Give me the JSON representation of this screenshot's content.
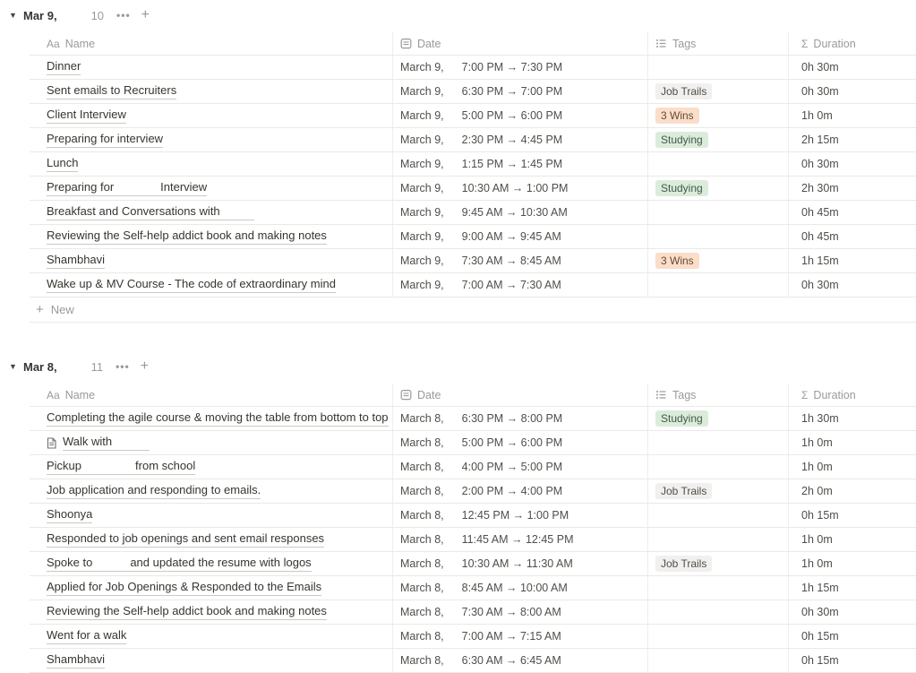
{
  "icons": {
    "toggle_glyph": "▼",
    "menu_glyph": "•••",
    "add_glyph": "+",
    "aa_glyph": "Aa",
    "sigma_glyph": "Σ",
    "plus_glyph": "+"
  },
  "columns": [
    {
      "key": "name",
      "label": "Name",
      "icon": "aa-icon"
    },
    {
      "key": "date",
      "label": "Date",
      "icon": "calendar-icon"
    },
    {
      "key": "tags",
      "label": "Tags",
      "icon": "list-icon"
    },
    {
      "key": "duration",
      "label": "Duration",
      "icon": "sigma-icon"
    }
  ],
  "tag_colors": {
    "Job Trails": {
      "bg": "#f1f0ee",
      "text": "#504e47"
    },
    "3 Wins": {
      "bg": "#fadec9",
      "text": "#664b33"
    },
    "Studying": {
      "bg": "#dcecdb",
      "text": "#3f5a4b"
    }
  },
  "groups": [
    {
      "title": "Mar 9,",
      "count": "10",
      "new_label": "New",
      "show_new_row": true,
      "rows": [
        {
          "name_pre": "Dinner",
          "name_gap": 0,
          "name_post": "",
          "page_icon": false,
          "date": "March 9,",
          "time": "7:00 PM → 7:30 PM",
          "tag": "",
          "duration": "0h 30m"
        },
        {
          "name_pre": "Sent emails to Recruiters",
          "name_gap": 0,
          "name_post": "",
          "page_icon": false,
          "date": "March 9,",
          "time": "6:30 PM → 7:00 PM",
          "tag": "Job Trails",
          "duration": "0h 30m"
        },
        {
          "name_pre": "Client Interview",
          "name_gap": 0,
          "name_post": "",
          "page_icon": false,
          "date": "March 9,",
          "time": "5:00 PM → 6:00 PM",
          "tag": "3 Wins",
          "duration": "1h 0m"
        },
        {
          "name_pre": "Preparing for interview",
          "name_gap": 0,
          "name_post": "",
          "page_icon": false,
          "date": "March 9,",
          "time": "2:30 PM → 4:45 PM",
          "tag": "Studying",
          "duration": "2h 15m"
        },
        {
          "name_pre": "Lunch",
          "name_gap": 0,
          "name_post": "",
          "page_icon": false,
          "date": "March 9,",
          "time": "1:15 PM → 1:45 PM",
          "tag": "",
          "duration": "0h 30m"
        },
        {
          "name_pre": "Preparing for",
          "name_gap": 52,
          "name_post": "Interview",
          "page_icon": false,
          "date": "March 9,",
          "time": "10:30 AM → 1:00 PM",
          "tag": "Studying",
          "duration": "2h 30m"
        },
        {
          "name_pre": "Breakfast and Conversations with",
          "name_gap": 38,
          "name_post": "",
          "page_icon": false,
          "date": "March 9,",
          "time": "9:45 AM → 10:30 AM",
          "tag": "",
          "duration": "0h 45m"
        },
        {
          "name_pre": "Reviewing the Self-help addict book and making notes",
          "name_gap": 0,
          "name_post": "",
          "page_icon": false,
          "date": "March 9,",
          "time": "9:00 AM → 9:45 AM",
          "tag": "",
          "duration": "0h 45m"
        },
        {
          "name_pre": "Shambhavi",
          "name_gap": 0,
          "name_post": "",
          "page_icon": false,
          "date": "March 9,",
          "time": "7:30 AM → 8:45 AM",
          "tag": "3 Wins",
          "duration": "1h 15m"
        },
        {
          "name_pre": "Wake up & MV Course - The code of extraordinary mind",
          "name_gap": 0,
          "name_post": "",
          "page_icon": false,
          "date": "March 9,",
          "time": "7:00 AM → 7:30 AM",
          "tag": "",
          "duration": "0h 30m"
        }
      ]
    },
    {
      "title": "Mar 8,",
      "count": "11",
      "new_label": "New",
      "show_new_row": false,
      "rows": [
        {
          "name_pre": "Completing the agile course & moving the table from bottom to top",
          "name_gap": 0,
          "name_post": "",
          "page_icon": false,
          "date": "March 8,",
          "time": "6:30 PM → 8:00 PM",
          "tag": "Studying",
          "duration": "1h 30m"
        },
        {
          "name_pre": "Walk with",
          "name_gap": 42,
          "name_post": "",
          "page_icon": true,
          "date": "March 8,",
          "time": "5:00 PM → 6:00 PM",
          "tag": "",
          "duration": "1h 0m"
        },
        {
          "name_pre": "Pickup",
          "name_gap": 60,
          "name_post": "from school",
          "page_icon": false,
          "date": "March 8,",
          "time": "4:00 PM → 5:00 PM",
          "tag": "",
          "duration": "1h 0m"
        },
        {
          "name_pre": "Job application and responding to emails.",
          "name_gap": 0,
          "name_post": "",
          "page_icon": false,
          "date": "March 8,",
          "time": "2:00 PM → 4:00 PM",
          "tag": "Job Trails",
          "duration": "2h 0m"
        },
        {
          "name_pre": "Shoonya",
          "name_gap": 0,
          "name_post": "",
          "page_icon": false,
          "date": "March 8,",
          "time": "12:45 PM → 1:00 PM",
          "tag": "",
          "duration": "0h 15m"
        },
        {
          "name_pre": "Responded to job openings and sent email responses",
          "name_gap": 0,
          "name_post": "",
          "page_icon": false,
          "date": "March 8,",
          "time": "11:45 AM → 12:45 PM",
          "tag": "",
          "duration": "1h 0m"
        },
        {
          "name_pre": "Spoke to",
          "name_gap": 42,
          "name_post": "and updated the resume with logos",
          "page_icon": false,
          "date": "March 8,",
          "time": "10:30 AM → 11:30 AM",
          "tag": "Job Trails",
          "duration": "1h 0m"
        },
        {
          "name_pre": "Applied for Job Openings & Responded to the Emails",
          "name_gap": 0,
          "name_post": "",
          "page_icon": false,
          "date": "March 8,",
          "time": "8:45 AM → 10:00 AM",
          "tag": "",
          "duration": "1h 15m"
        },
        {
          "name_pre": "Reviewing the Self-help addict book and making notes",
          "name_gap": 0,
          "name_post": "",
          "page_icon": false,
          "date": "March 8,",
          "time": "7:30 AM → 8:00 AM",
          "tag": "",
          "duration": "0h 30m"
        },
        {
          "name_pre": "Went for a walk",
          "name_gap": 0,
          "name_post": "",
          "page_icon": false,
          "date": "March 8,",
          "time": "7:00 AM → 7:15 AM",
          "tag": "",
          "duration": "0h 15m"
        },
        {
          "name_pre": "Shambhavi",
          "name_gap": 0,
          "name_post": "",
          "page_icon": false,
          "date": "March 8,",
          "time": "6:30 AM → 6:45 AM",
          "tag": "",
          "duration": "0h 15m"
        }
      ]
    }
  ]
}
